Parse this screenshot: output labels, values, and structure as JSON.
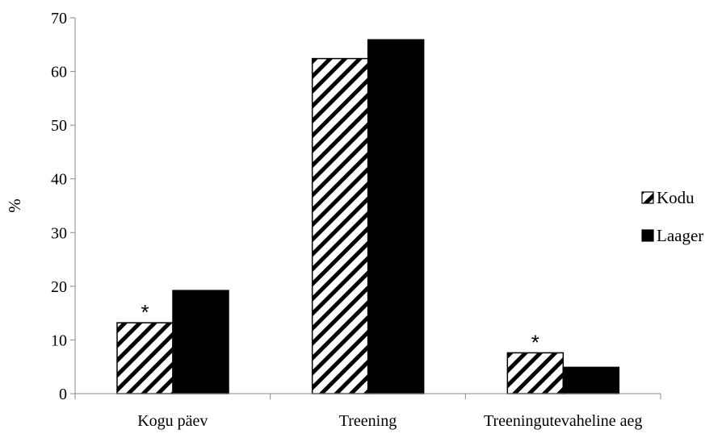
{
  "chart_data": {
    "type": "bar",
    "title": "",
    "xlabel": "",
    "ylabel": "%",
    "ylim": [
      0,
      70
    ],
    "yticks": [
      0,
      10,
      20,
      30,
      40,
      50,
      60,
      70
    ],
    "grid": false,
    "legend_position": "right",
    "categories": [
      "Kogu päev",
      "Treening",
      "Treeningutevaheline aeg"
    ],
    "series": [
      {
        "name": "Kodu",
        "values": [
          13.2,
          62.4,
          7.6
        ],
        "fill": "hatched",
        "color": "#000000"
      },
      {
        "name": "Laager",
        "values": [
          19.2,
          65.9,
          4.9
        ],
        "fill": "solid",
        "color": "#000000"
      }
    ],
    "annotations": [
      {
        "category_index": 0,
        "series_index": 0,
        "text": "*"
      },
      {
        "category_index": 2,
        "series_index": 0,
        "text": "*"
      }
    ]
  }
}
